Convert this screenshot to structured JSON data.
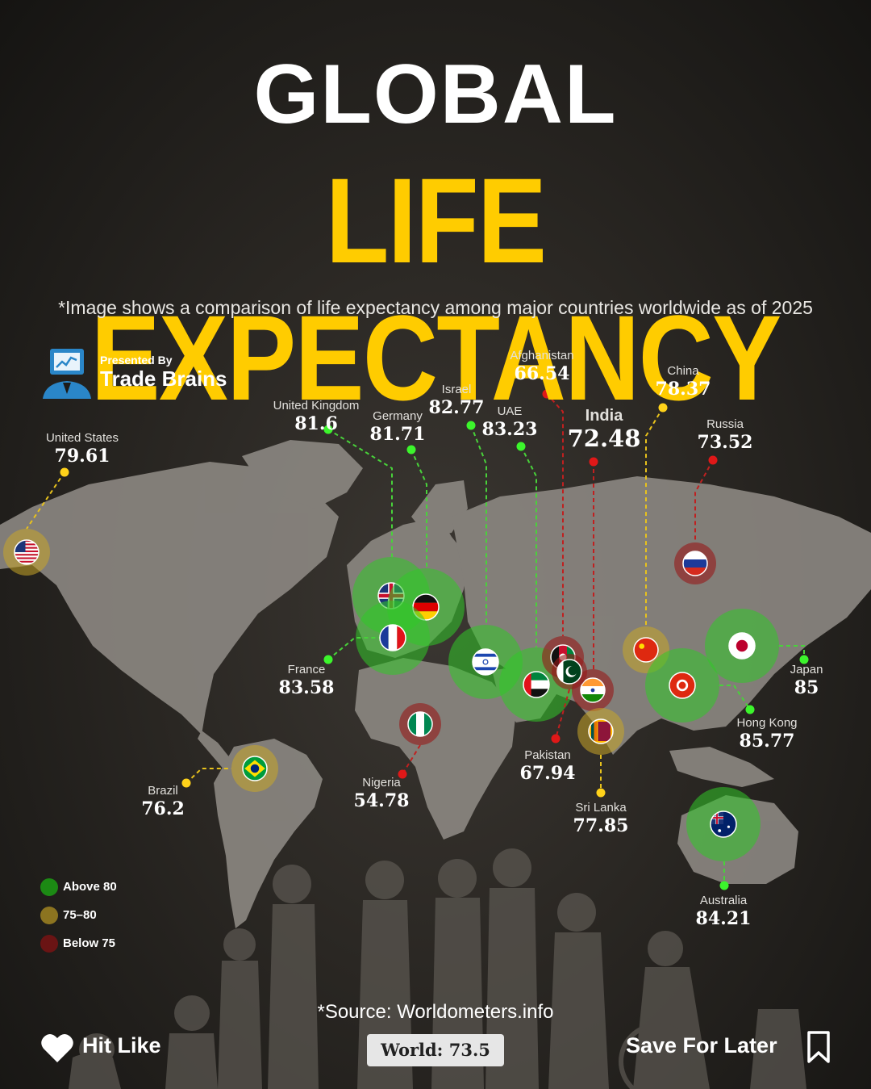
{
  "header": {
    "title_line1": "GLOBAL",
    "title_line2": "LIFE EXPECTANCY",
    "subtitle": "*Image shows a comparison of life expectancy among major countries worldwide as of 2025"
  },
  "brand": {
    "presented_by": "Presented By",
    "name": "Trade Brains"
  },
  "colors": {
    "title_yellow": "#ffcc00",
    "above_80": "#22b81c",
    "range_75_80": "#b8960c",
    "below_75": "#8a1212"
  },
  "countries": [
    {
      "name": "United States",
      "value": "79.61",
      "category": "75-80"
    },
    {
      "name": "United Kingdom",
      "value": "81.6",
      "category": "above-80"
    },
    {
      "name": "Germany",
      "value": "81.71",
      "category": "above-80"
    },
    {
      "name": "Israel",
      "value": "82.77",
      "category": "above-80"
    },
    {
      "name": "UAE",
      "value": "83.23",
      "category": "above-80"
    },
    {
      "name": "Afghanistan",
      "value": "66.54",
      "category": "below-75"
    },
    {
      "name": "India",
      "value": "72.48",
      "category": "below-75"
    },
    {
      "name": "China",
      "value": "78.37",
      "category": "75-80"
    },
    {
      "name": "Russia",
      "value": "73.52",
      "category": "below-75"
    },
    {
      "name": "France",
      "value": "83.58",
      "category": "above-80"
    },
    {
      "name": "Japan",
      "value": "85",
      "category": "above-80"
    },
    {
      "name": "Hong Kong",
      "value": "85.77",
      "category": "above-80"
    },
    {
      "name": "Pakistan",
      "value": "67.94",
      "category": "below-75"
    },
    {
      "name": "Nigeria",
      "value": "54.78",
      "category": "below-75"
    },
    {
      "name": "Brazil",
      "value": "76.2",
      "category": "75-80"
    },
    {
      "name": "Sri Lanka",
      "value": "77.85",
      "category": "75-80"
    },
    {
      "name": "Australia",
      "value": "84.21",
      "category": "above-80"
    }
  ],
  "legend": [
    {
      "label": "Above 80"
    },
    {
      "label": "75–80"
    },
    {
      "label": "Below 75"
    }
  ],
  "footer": {
    "source": "*Source: Worldometers.info",
    "world": "World: 73.5",
    "like": "Hit Like",
    "save": "Save For Later"
  }
}
